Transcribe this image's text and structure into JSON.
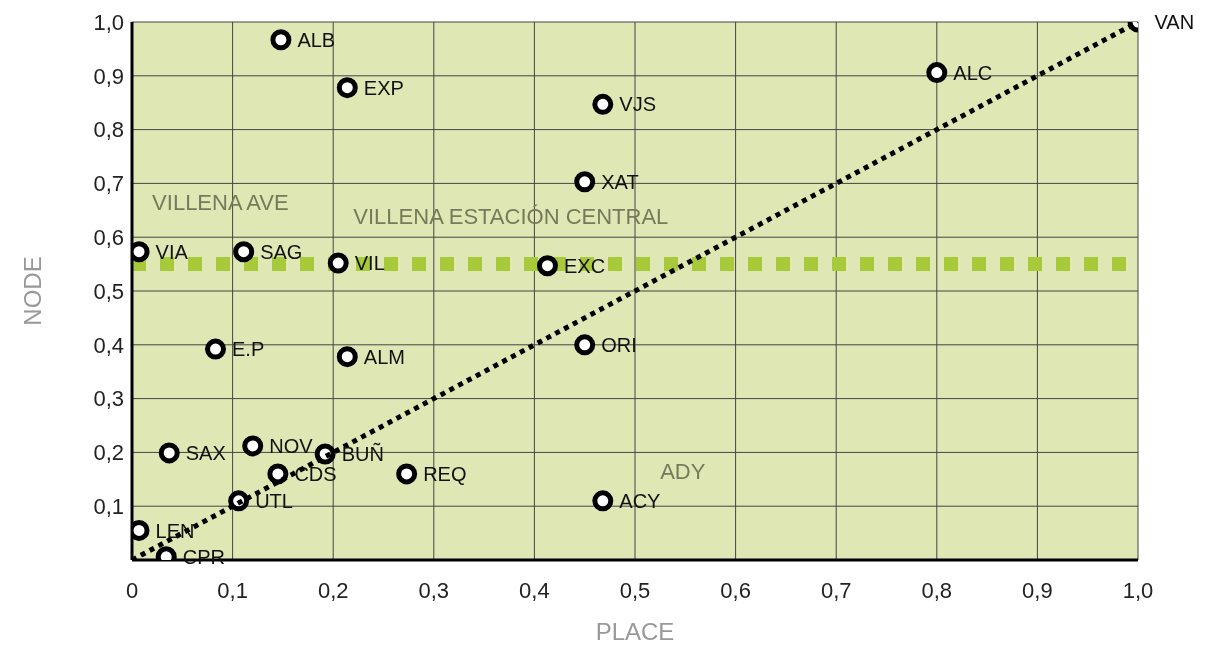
{
  "chart_data": {
    "type": "scatter",
    "xlabel": "PLACE",
    "ylabel": "NODE",
    "series": [
      {
        "color": "#000000",
        "marker": "circle",
        "x": [
          1.0,
          0.8,
          0.148,
          0.214,
          0.468,
          0.45,
          0.007,
          0.111,
          0.205,
          0.413,
          0.083,
          0.214,
          0.45,
          0.037,
          0.12,
          0.192,
          0.145,
          0.273,
          0.106,
          0.468,
          0.007,
          0.034
        ],
        "values": [
          1.0,
          0.906,
          0.967,
          0.878,
          0.847,
          0.703,
          0.573,
          0.573,
          0.552,
          0.547,
          0.392,
          0.378,
          0.4,
          0.199,
          0.212,
          0.197,
          0.16,
          0.16,
          0.11,
          0.11,
          0.055,
          0.006
        ],
        "value_labels": [
          "VAN",
          "ALC",
          "ALB",
          "EXP",
          "VJS",
          "XAT",
          "VIA",
          "SAG",
          "VIL",
          "EXC",
          "E.P",
          "ALM",
          "ORI",
          "SAX",
          "NOV",
          "BUÑ",
          "CDS",
          "REQ",
          "UTL",
          "ACY",
          "LEN",
          "CPR"
        ]
      },
      {
        "type": "line",
        "color": "#000000",
        "line_style": "dotted",
        "marker": "none",
        "x": [
          0,
          1.0
        ],
        "values": [
          0,
          1.0
        ]
      }
    ],
    "xlim": [
      0,
      1.0
    ],
    "ylim": [
      0,
      1.0
    ],
    "xticks": [
      {
        "value": 0,
        "label": "0"
      },
      {
        "value": 0.1,
        "label": "0,1"
      },
      {
        "value": 0.2,
        "label": "0,2"
      },
      {
        "value": 0.3,
        "label": "0,3"
      },
      {
        "value": 0.4,
        "label": "0,4"
      },
      {
        "value": 0.5,
        "label": "0,5"
      },
      {
        "value": 0.6,
        "label": "0,6"
      },
      {
        "value": 0.7,
        "label": "0,7"
      },
      {
        "value": 0.8,
        "label": "0,8"
      },
      {
        "value": 0.9,
        "label": "0,9"
      },
      {
        "value": 1.0,
        "label": "1,0"
      }
    ],
    "yticks": [
      {
        "value": 0.1,
        "label": "0,1"
      },
      {
        "value": 0.2,
        "label": "0,2"
      },
      {
        "value": 0.3,
        "label": "0,3"
      },
      {
        "value": 0.4,
        "label": "0,4"
      },
      {
        "value": 0.5,
        "label": "0,5"
      },
      {
        "value": 0.6,
        "label": "0,6"
      },
      {
        "value": 0.7,
        "label": "0,7"
      },
      {
        "value": 0.8,
        "label": "0,8"
      },
      {
        "value": 0.9,
        "label": "0,9"
      },
      {
        "value": 1.0,
        "label": "1,0"
      }
    ],
    "grid": true,
    "ref_lines": [
      {
        "axis": "y",
        "value": 0.55,
        "color": "#a8c93a",
        "line_style": "dashed"
      }
    ],
    "annotations": [
      "VILLENA AVE",
      "VILLENA ESTACIÓN CENTRAL",
      "ADY"
    ]
  }
}
